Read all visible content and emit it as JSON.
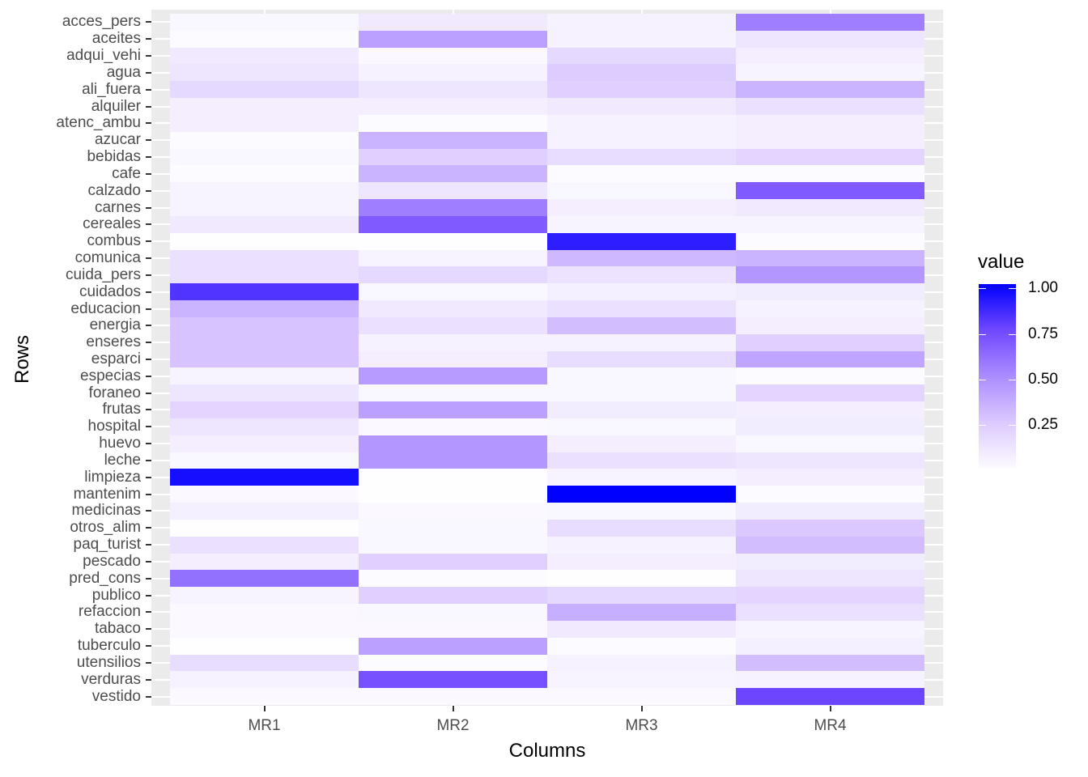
{
  "chart_data": {
    "type": "heatmap",
    "title": "",
    "xlabel": "Columns",
    "ylabel": "Rows",
    "x": [
      "MR1",
      "MR2",
      "MR3",
      "MR4"
    ],
    "y": [
      "acces_pers",
      "aceites",
      "adqui_vehi",
      "agua",
      "ali_fuera",
      "alquiler",
      "atenc_ambu",
      "azucar",
      "bebidas",
      "cafe",
      "calzado",
      "carnes",
      "cereales",
      "combus",
      "comunica",
      "cuida_pers",
      "cuidados",
      "educacion",
      "energia",
      "enseres",
      "esparci",
      "especias",
      "foraneo",
      "frutas",
      "hospital",
      "huevo",
      "leche",
      "limpieza",
      "mantenim",
      "medicinas",
      "otros_alim",
      "paq_turist",
      "pescado",
      "pred_cons",
      "publico",
      "refaccion",
      "tabaco",
      "tuberculo",
      "utensilios",
      "verduras",
      "vestido"
    ],
    "values": [
      [
        0.04,
        0.1,
        0.06,
        0.55
      ],
      [
        0.02,
        0.42,
        0.06,
        0.12
      ],
      [
        0.1,
        0.03,
        0.18,
        0.08
      ],
      [
        0.12,
        0.06,
        0.24,
        0.05
      ],
      [
        0.18,
        0.12,
        0.22,
        0.34
      ],
      [
        0.08,
        0.08,
        0.1,
        0.14
      ],
      [
        0.08,
        0.02,
        0.06,
        0.08
      ],
      [
        0.02,
        0.34,
        0.06,
        0.08
      ],
      [
        0.04,
        0.22,
        0.16,
        0.2
      ],
      [
        0.02,
        0.34,
        0.02,
        0.02
      ],
      [
        0.05,
        0.12,
        0.04,
        0.68
      ],
      [
        0.05,
        0.55,
        0.08,
        0.1
      ],
      [
        0.1,
        0.68,
        0.05,
        0.05
      ],
      [
        0.01,
        0.01,
        0.9,
        0.02
      ],
      [
        0.14,
        0.05,
        0.32,
        0.34
      ],
      [
        0.14,
        0.18,
        0.13,
        0.46
      ],
      [
        0.82,
        0.04,
        0.07,
        0.09
      ],
      [
        0.34,
        0.1,
        0.14,
        0.06
      ],
      [
        0.28,
        0.14,
        0.3,
        0.08
      ],
      [
        0.28,
        0.06,
        0.06,
        0.22
      ],
      [
        0.28,
        0.08,
        0.16,
        0.4
      ],
      [
        0.05,
        0.44,
        0.04,
        0.02
      ],
      [
        0.12,
        0.04,
        0.04,
        0.2
      ],
      [
        0.2,
        0.42,
        0.09,
        0.08
      ],
      [
        0.12,
        0.03,
        0.04,
        0.09
      ],
      [
        0.08,
        0.46,
        0.08,
        0.04
      ],
      [
        0.04,
        0.46,
        0.14,
        0.12
      ],
      [
        0.95,
        0.01,
        0.05,
        0.08
      ],
      [
        0.03,
        0.01,
        1.0,
        0.02
      ],
      [
        0.07,
        0.03,
        0.04,
        0.09
      ],
      [
        0.01,
        0.04,
        0.16,
        0.26
      ],
      [
        0.14,
        0.04,
        0.06,
        0.3
      ],
      [
        0.08,
        0.22,
        0.08,
        0.09
      ],
      [
        0.6,
        0.02,
        0.01,
        0.12
      ],
      [
        0.05,
        0.22,
        0.18,
        0.2
      ],
      [
        0.03,
        0.04,
        0.36,
        0.14
      ],
      [
        0.03,
        0.03,
        0.1,
        0.05
      ],
      [
        0.01,
        0.42,
        0.02,
        0.07
      ],
      [
        0.16,
        0.02,
        0.06,
        0.3
      ],
      [
        0.06,
        0.72,
        0.05,
        0.06
      ],
      [
        0.03,
        0.03,
        0.03,
        0.76
      ]
    ],
    "colorscale": {
      "low": "#ffffff",
      "high": "#0000ff",
      "range": [
        0.0,
        1.0
      ]
    },
    "legend": {
      "title": "value",
      "ticks": [
        "1.00",
        "0.75",
        "0.50",
        "0.25"
      ],
      "position": "right"
    },
    "grid": true
  }
}
